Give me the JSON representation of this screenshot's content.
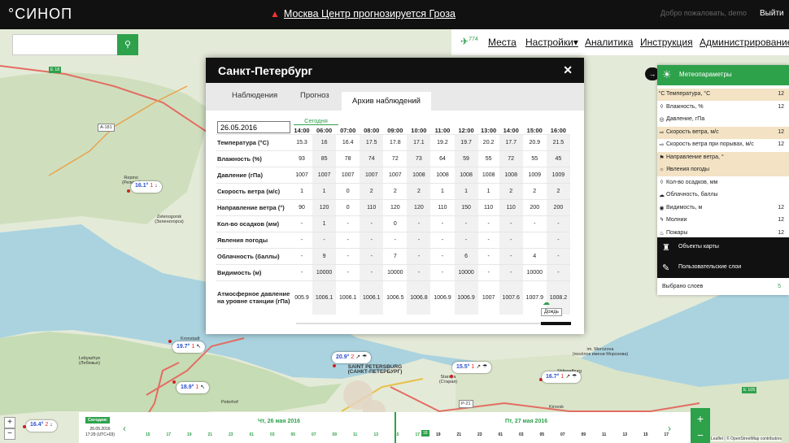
{
  "app": {
    "logo": "°СИНОП",
    "alert": "Москва Центр прогнозируется Гроза",
    "welcome": "Добро пожаловать, demo",
    "logout": "Выйти"
  },
  "nav": {
    "wind_count": "774",
    "items": [
      "Места",
      "Настройки▾",
      "Аналитика",
      "Инструкция",
      "Администрирование"
    ]
  },
  "modal": {
    "title": "Санкт-Петербург",
    "tabs": [
      "Наблюдения",
      "Прогноз",
      "Архив наблюдений"
    ],
    "today_label": "Сегодня",
    "date_value": "26.05.2016",
    "hours": [
      "14:00",
      "06:00",
      "07:00",
      "08:00",
      "09:00",
      "10:00",
      "11:00",
      "12:00",
      "13:00",
      "14:00",
      "15:00",
      "16:00"
    ],
    "rows": [
      {
        "label": "Температура (°C)",
        "values": [
          "15.3",
          "16",
          "16.4",
          "17.5",
          "17.8",
          "17.1",
          "19.2",
          "19.7",
          "20.2",
          "17.7",
          "20.9",
          "21.5"
        ]
      },
      {
        "label": "Влажность (%)",
        "values": [
          "93",
          "85",
          "78",
          "74",
          "72",
          "73",
          "64",
          "59",
          "55",
          "72",
          "55",
          "45"
        ]
      },
      {
        "label": "Давление (гПа)",
        "values": [
          "1007",
          "1007",
          "1007",
          "1007",
          "1007",
          "1008",
          "1008",
          "1008",
          "1008",
          "1008",
          "1009",
          "1009"
        ]
      },
      {
        "label": "Скорость ветра (м/с)",
        "values": [
          "1",
          "1",
          "0",
          "2",
          "2",
          "2",
          "1",
          "1",
          "1",
          "2",
          "2",
          "2"
        ]
      },
      {
        "label": "Направление ветра (°)",
        "values": [
          "90",
          "120",
          "0",
          "110",
          "120",
          "120",
          "110",
          "150",
          "110",
          "110",
          "200",
          "200"
        ]
      },
      {
        "label": "Кол-во осадков (мм)",
        "values": [
          "-",
          "1",
          "-",
          "-",
          "0",
          "-",
          "-",
          "-",
          "-",
          "-",
          "-",
          "-"
        ]
      },
      {
        "label": "Явления погоды",
        "values": [
          "-",
          "-",
          "-",
          "-",
          "-",
          "-",
          "-",
          "-",
          "-",
          "-",
          "",
          "-"
        ]
      },
      {
        "label": "Облачность (баллы)",
        "values": [
          "-",
          "9",
          "-",
          "-",
          "7",
          "-",
          "-",
          "6",
          "-",
          "-",
          "4",
          "-"
        ]
      },
      {
        "label": "Видимость (м)",
        "values": [
          "-",
          "10000",
          "-",
          "-",
          "10000",
          "-",
          "-",
          "10000",
          "-",
          "-",
          "10000",
          "-"
        ]
      },
      {
        "label": "Атмосферное давление на уровне станции (гПа)",
        "values": [
          "005.9",
          "1006.1",
          "1006.1",
          "1006.1",
          "1006.5",
          "1006.8",
          "1006.9",
          "1006.9",
          "1007",
          "1007.6",
          "1007.9",
          "1008.2"
        ]
      }
    ],
    "tooltip": "Дождь"
  },
  "panel": {
    "title": "Метеопараметры",
    "rows": [
      {
        "icon": "°C",
        "label": "Температура, °C",
        "count": "12",
        "selected": true
      },
      {
        "icon": "◊",
        "label": "Влажность, %",
        "count": "12",
        "selected": false
      },
      {
        "icon": "◎",
        "label": "Давление, гПа",
        "count": "",
        "selected": false
      },
      {
        "icon": "⇨",
        "label": "Скорость ветра, м/с",
        "count": "12",
        "selected": true
      },
      {
        "icon": "⇨",
        "label": "Скорость ветра при порывах, м/с",
        "count": "12",
        "selected": false
      },
      {
        "icon": "⚑",
        "label": "Направление ветра, °",
        "count": "",
        "selected": true
      },
      {
        "icon": "☼",
        "label": "Явления погоды",
        "count": "",
        "selected": true
      },
      {
        "icon": "◊",
        "label": "Кол-во осадков, мм",
        "count": "",
        "selected": false
      },
      {
        "icon": "☁",
        "label": "Облачность, баллы",
        "count": "",
        "selected": false
      },
      {
        "icon": "◉",
        "label": "Видимость, м",
        "count": "12",
        "selected": false
      },
      {
        "icon": "ϟ",
        "label": "Молнии",
        "count": "12",
        "selected": false
      },
      {
        "icon": "♨",
        "label": "Пожары",
        "count": "12",
        "selected": false
      }
    ],
    "map_objects": "Объекты карты",
    "user_layers": "Пользовательские слои",
    "selected_label": "Выбрано слоев",
    "selected_count": "5"
  },
  "markers": [
    {
      "temp": "16.1°",
      "wind": "1",
      "dir": "↓"
    },
    {
      "temp": "19.7°",
      "wind": "1",
      "dir": "↖"
    },
    {
      "temp": "20.9°",
      "wind": "2",
      "dir": "↗ ☂"
    },
    {
      "temp": "18.9°",
      "wind": "1",
      "dir": "↖"
    },
    {
      "temp": "15.5°",
      "wind": "1",
      "dir": "↗ ☂"
    },
    {
      "temp": "16.7°",
      "wind": "1",
      "dir": "↗ ☂"
    },
    {
      "temp": "16.4°",
      "wind": "2",
      "dir": "↓"
    }
  ],
  "places": {
    "spb": "SAINT PETERSBURG\n(САНКТ-ПЕТЕРБУРГ)",
    "zelenogorsk": "Zelenogorsk\n(Зеленогорск)",
    "repino": "Repino\n(Репино)",
    "kronstadt": "Kronstadt",
    "lebyazhye": "Lebyazhye\n(Лебяжье)",
    "peterhof": "Peterhof",
    "starya": "Staraya\n(Старая)",
    "shlisselburg": "Shlisselburg",
    "morozova": "im. Morozova\n(посёлок имени Морозова)",
    "kirovsk": "Kirovsk",
    "road_e18": "E 18",
    "road_a181": "A-181",
    "road_e105": "E 105",
    "road_p21": "P-21"
  },
  "timeline": {
    "today": "Сегодня:",
    "date": "26.05.2016\n17:29 (UTC+03)",
    "day1": "Чт, 26 мая 2016",
    "day2": "Пт, 27 мая 2016",
    "hours": [
      "15",
      "17",
      "19",
      "21",
      "23",
      "01",
      "03",
      "05",
      "07",
      "09",
      "11",
      "13",
      "15",
      "17",
      "19",
      "21",
      "23",
      "01",
      "03",
      "05",
      "07",
      "09",
      "11",
      "13",
      "15",
      "17"
    ],
    "selected_hour": "18"
  },
  "attribution": "Leaflet | © OpenStreetMap contributors",
  "colors": {
    "accent": "#2ea14b",
    "topbar": "#111111",
    "water": "#aad3df",
    "selected_row": "#f3e3c4"
  }
}
